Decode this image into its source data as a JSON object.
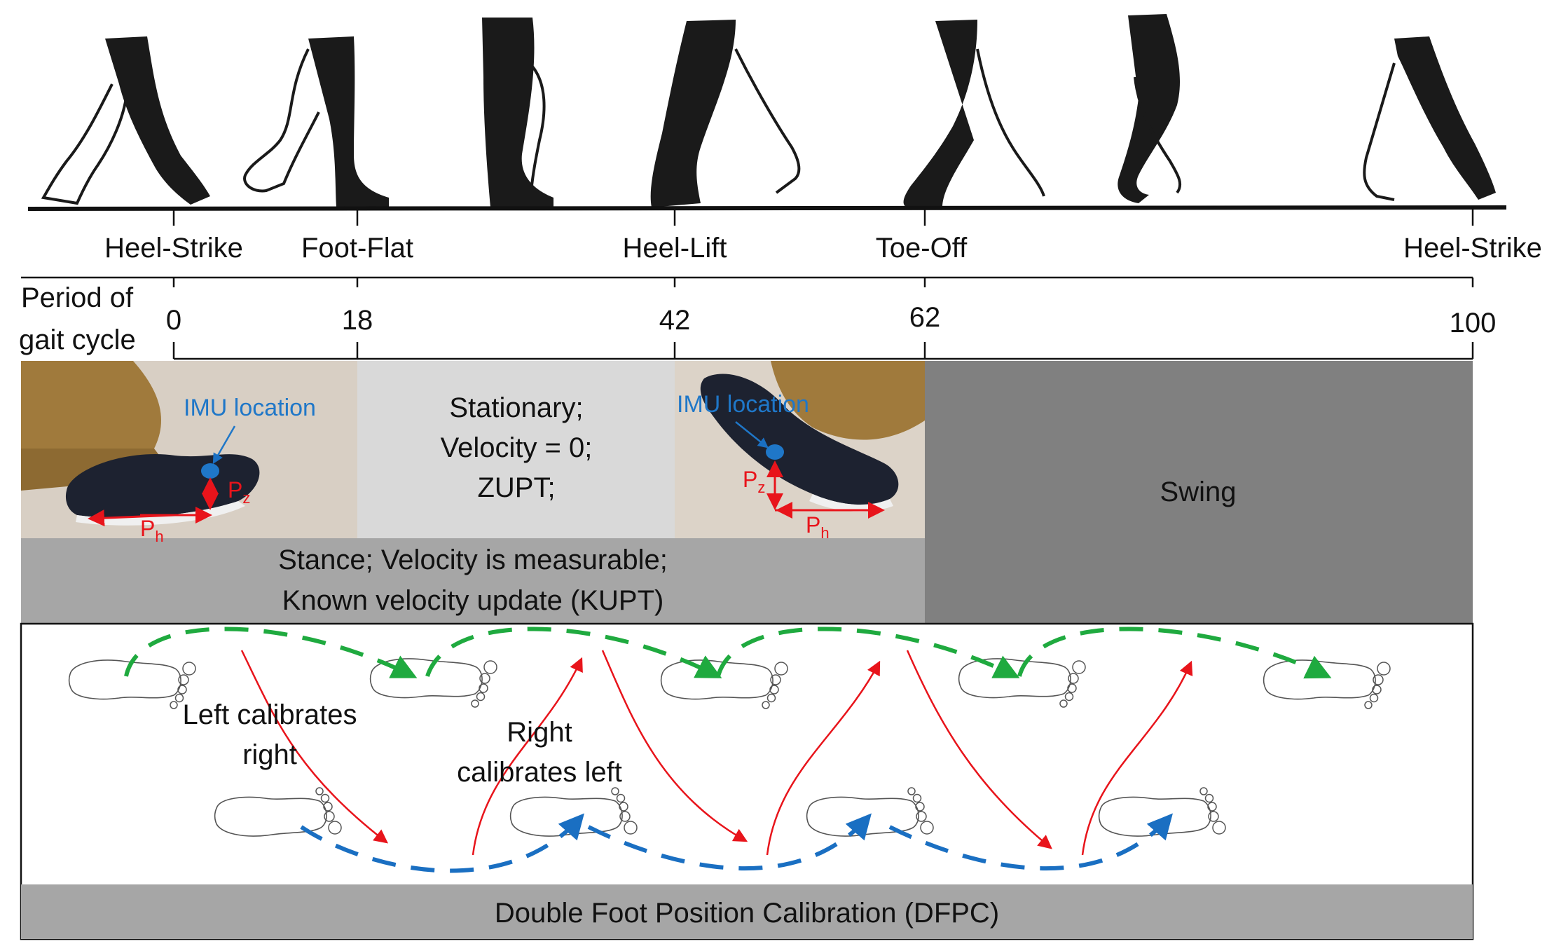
{
  "gait_phases": [
    {
      "label": "Heel-Strike",
      "percent": "0"
    },
    {
      "label": "Foot-Flat",
      "percent": "18"
    },
    {
      "label": "Heel-Lift",
      "percent": "42"
    },
    {
      "label": "Toe-Off",
      "percent": "62"
    },
    {
      "label": "Heel-Strike",
      "percent": "100"
    }
  ],
  "period_label": [
    "Period of",
    "gait cycle"
  ],
  "stationary_text": [
    "Stationary;",
    "Velocity = 0;",
    "ZUPT;"
  ],
  "imu_label": "IMU location",
  "pz_label": {
    "main": "P",
    "sub": "z"
  },
  "ph_label": {
    "main": "P",
    "sub": "h"
  },
  "swing_label": "Swing",
  "stance_text": [
    "Stance; Velocity is measurable;",
    "Known velocity update (KUPT)"
  ],
  "left_calibrates": [
    "Left calibrates",
    "right"
  ],
  "right_calibrates": [
    "Right",
    "calibrates left"
  ],
  "dfpc_label": "Double Foot Position Calibration (DFPC)",
  "colors": {
    "stationary_bg": "#d9d9d9",
    "swing_bg": "#808080",
    "stance_bg": "#a6a6a6",
    "dfpc_bg": "#a6a6a6",
    "imu_blue": "#1f77c8",
    "arrow_red": "#e8141b",
    "green_dash": "#1faa3f",
    "blue_dash": "#1a6fc2"
  }
}
